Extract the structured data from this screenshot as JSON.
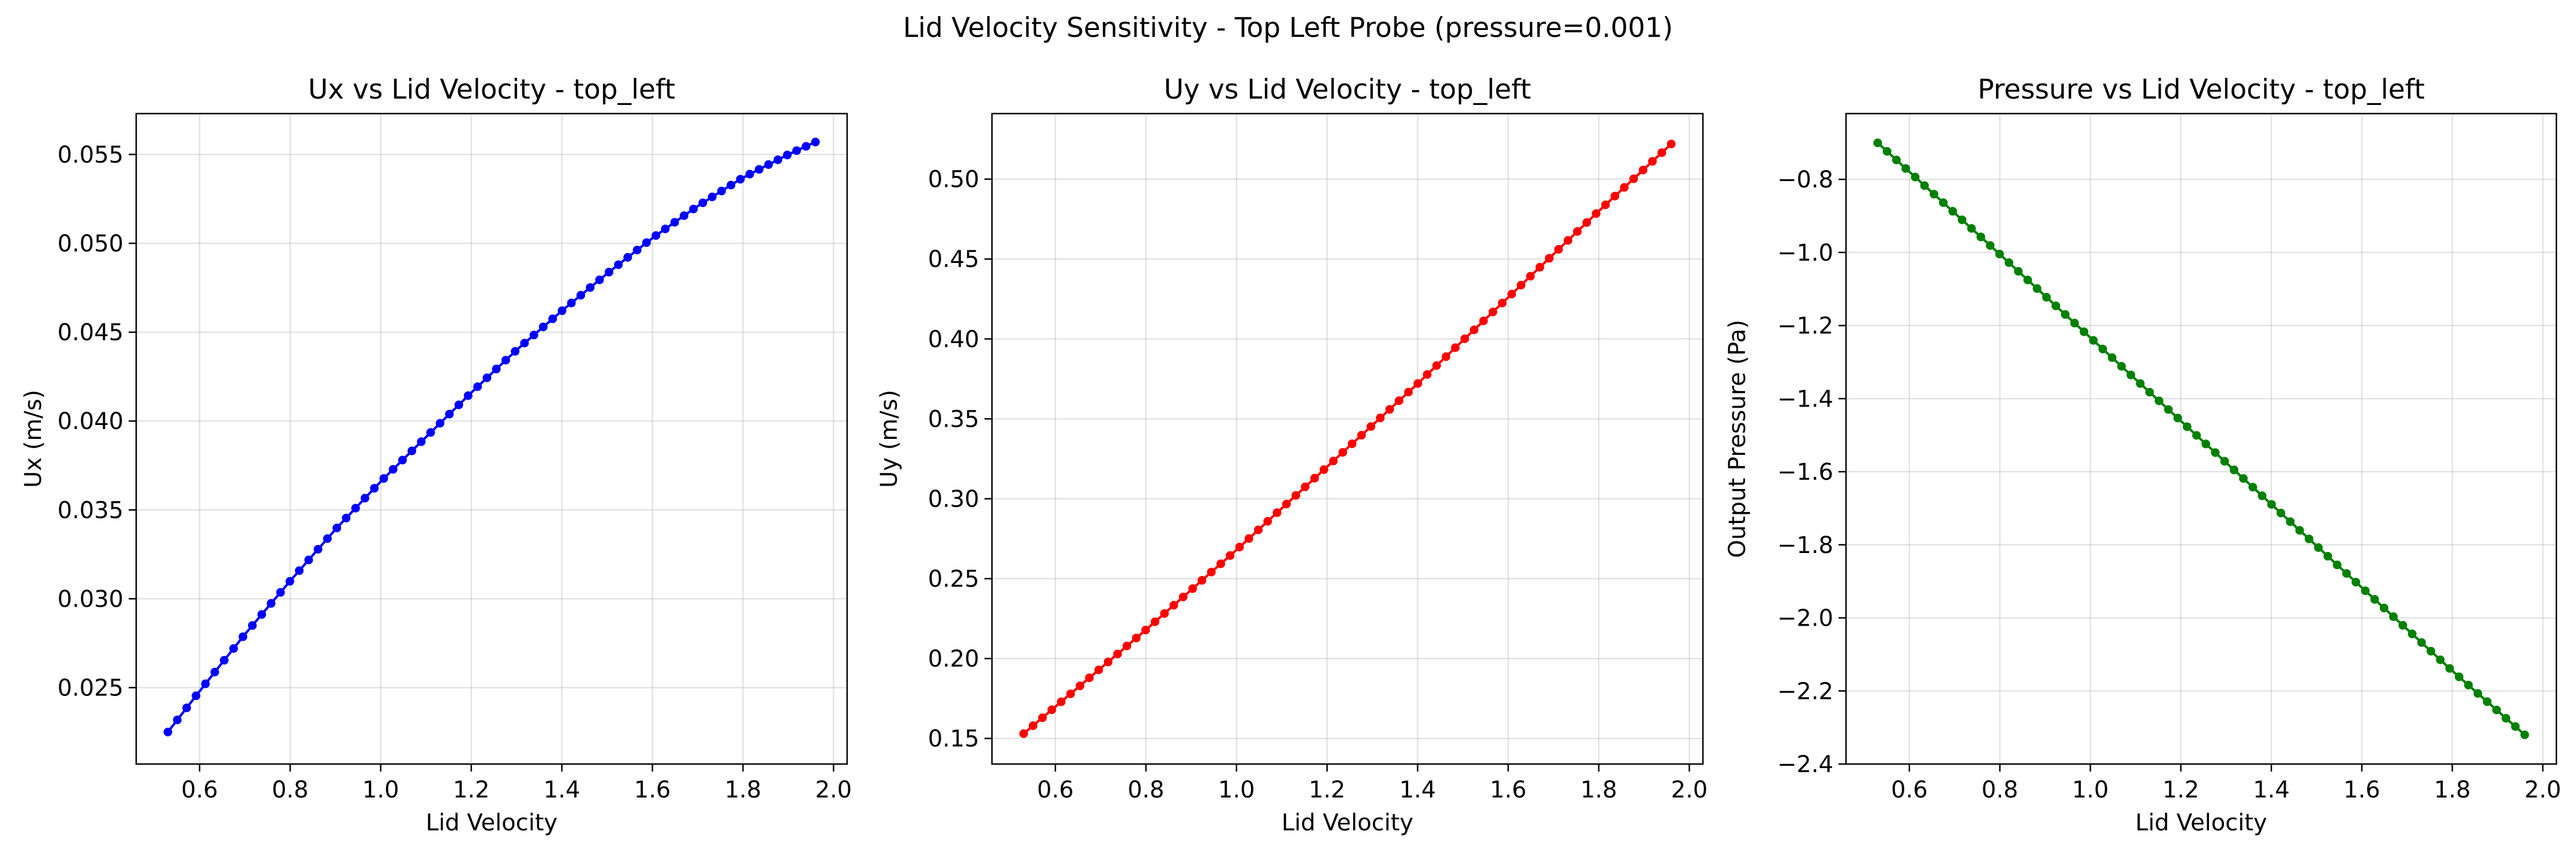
{
  "figure": {
    "title": "Lid Velocity Sensitivity - Top Left Probe (pressure=0.001)"
  },
  "chart_data": [
    {
      "type": "line",
      "title": "Ux vs Lid Velocity - top_left",
      "xlabel": "Lid Velocity",
      "ylabel": "Ux (m/s)",
      "xlim": [
        0.46,
        2.03
      ],
      "ylim": [
        0.0207,
        0.0573
      ],
      "xticks": [
        0.6,
        0.8,
        1.0,
        1.2,
        1.4,
        1.6,
        1.8,
        2.0
      ],
      "xtick_labels": [
        "0.6",
        "0.8",
        "1.0",
        "1.2",
        "1.4",
        "1.6",
        "1.8",
        "2.0"
      ],
      "yticks": [
        0.025,
        0.03,
        0.035,
        0.04,
        0.045,
        0.05,
        0.055
      ],
      "ytick_labels": [
        "0.025",
        "0.030",
        "0.035",
        "0.040",
        "0.045",
        "0.050",
        "0.055"
      ],
      "grid": true,
      "color": "#0000ff",
      "marker": "circle",
      "series": [
        {
          "x_start": 0.53,
          "x_end": 1.96,
          "n_points": 70,
          "x_anchor": [
            0.53,
            0.6,
            0.7,
            0.8,
            0.9,
            1.0,
            1.1,
            1.2,
            1.3,
            1.4,
            1.5,
            1.6,
            1.7,
            1.8,
            1.9,
            1.96
          ],
          "y_anchor": [
            0.0225,
            0.0248,
            0.028,
            0.031,
            0.0339,
            0.0366,
            0.0391,
            0.0416,
            0.044,
            0.0462,
            0.0483,
            0.0503,
            0.0521,
            0.0537,
            0.055,
            0.0557
          ]
        }
      ]
    },
    {
      "type": "line",
      "title": "Uy vs Lid Velocity - top_left",
      "xlabel": "Lid Velocity",
      "ylabel": "Uy (m/s)",
      "xlim": [
        0.46,
        2.03
      ],
      "ylim": [
        0.134,
        0.541
      ],
      "xticks": [
        0.6,
        0.8,
        1.0,
        1.2,
        1.4,
        1.6,
        1.8,
        2.0
      ],
      "xtick_labels": [
        "0.6",
        "0.8",
        "1.0",
        "1.2",
        "1.4",
        "1.6",
        "1.8",
        "2.0"
      ],
      "yticks": [
        0.15,
        0.2,
        0.25,
        0.3,
        0.35,
        0.4,
        0.45,
        0.5
      ],
      "ytick_labels": [
        "0.15",
        "0.20",
        "0.25",
        "0.30",
        "0.35",
        "0.40",
        "0.45",
        "0.50"
      ],
      "grid": true,
      "color": "#ff0000",
      "marker": "circle",
      "series": [
        {
          "x_start": 0.53,
          "x_end": 1.96,
          "n_points": 70,
          "x_anchor": [
            0.53,
            0.8,
            1.0,
            1.2,
            1.4,
            1.6,
            1.8,
            1.96
          ],
          "y_anchor": [
            0.153,
            0.218,
            0.268,
            0.32,
            0.372,
            0.426,
            0.48,
            0.522
          ]
        }
      ]
    },
    {
      "type": "line",
      "title": "Pressure vs Lid Velocity - top_left",
      "xlabel": "Lid Velocity",
      "ylabel": "Output Pressure (Pa)",
      "xlim": [
        0.46,
        2.03
      ],
      "ylim": [
        -2.4,
        -0.62
      ],
      "xticks": [
        0.6,
        0.8,
        1.0,
        1.2,
        1.4,
        1.6,
        1.8,
        2.0
      ],
      "xtick_labels": [
        "0.6",
        "0.8",
        "1.0",
        "1.2",
        "1.4",
        "1.6",
        "1.8",
        "2.0"
      ],
      "yticks": [
        -0.8,
        -1.0,
        -1.2,
        -1.4,
        -1.6,
        -1.8,
        -2.0,
        -2.2,
        -2.4
      ],
      "ytick_labels": [
        "−0.8",
        "−1.0",
        "−1.2",
        "−1.4",
        "−1.6",
        "−1.8",
        "−2.0",
        "−2.2",
        "−2.4"
      ],
      "grid": true,
      "color": "#008000",
      "marker": "circle",
      "series": [
        {
          "x_start": 0.53,
          "x_end": 1.96,
          "n_points": 70,
          "x_anchor": [
            0.53,
            0.8,
            1.0,
            1.2,
            1.4,
            1.6,
            1.8,
            1.96
          ],
          "y_anchor": [
            -0.7,
            -1.005,
            -1.233,
            -1.461,
            -1.689,
            -1.917,
            -2.145,
            -2.32
          ]
        }
      ]
    }
  ]
}
